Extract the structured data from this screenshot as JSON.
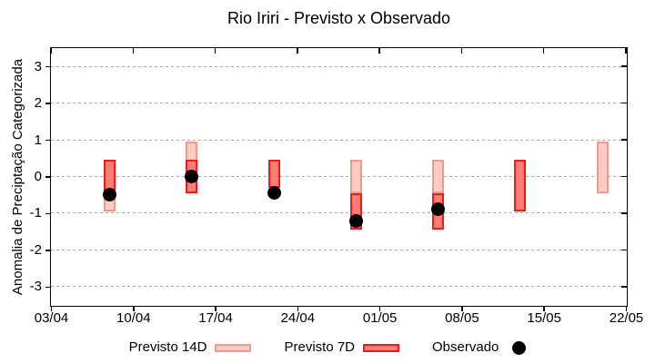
{
  "chart_data": {
    "type": "range-bar-scatter",
    "title": "Rio Iriri - Previsto x Observado",
    "ylabel": "Anomalia de Preciptação Categorizada",
    "ylim": [
      -3.5,
      3.5
    ],
    "yticks": [
      3,
      2,
      1,
      0,
      -1,
      -2,
      -3
    ],
    "grid": true,
    "legend_position": "bottom-center",
    "x_axis": {
      "total_days": 49,
      "ticks": [
        {
          "day": 0,
          "label": "03/04"
        },
        {
          "day": 7,
          "label": "10/04"
        },
        {
          "day": 14,
          "label": "17/04"
        },
        {
          "day": 21,
          "label": "24/04"
        },
        {
          "day": 28,
          "label": "01/05"
        },
        {
          "day": 35,
          "label": "08/05"
        },
        {
          "day": 42,
          "label": "15/05"
        },
        {
          "day": 49,
          "label": "22/05"
        }
      ]
    },
    "series": [
      {
        "name": "Previsto 14D",
        "type": "range",
        "fill": "#fbcbc4",
        "border": "#f09a8d",
        "points": [
          {
            "date": "08/04",
            "day": 5,
            "low": -0.95,
            "high": 0.45
          },
          {
            "date": "15/04",
            "day": 12,
            "low": -0.45,
            "high": 0.95
          },
          {
            "date": "29/04",
            "day": 26,
            "low": -0.45,
            "high": 0.45
          },
          {
            "date": "06/05",
            "day": 33,
            "low": -0.45,
            "high": 0.45
          },
          {
            "date": "20/05",
            "day": 47,
            "low": -0.45,
            "high": 0.95
          }
        ]
      },
      {
        "name": "Previsto 7D",
        "type": "range",
        "fill": "#fb7e76",
        "border": "#ea1c1c",
        "points": [
          {
            "date": "08/04",
            "day": 5,
            "low": -0.45,
            "high": 0.45
          },
          {
            "date": "15/04",
            "day": 12,
            "low": -0.45,
            "high": 0.45
          },
          {
            "date": "22/04",
            "day": 19,
            "low": -0.3,
            "high": 0.45
          },
          {
            "date": "29/04",
            "day": 26,
            "low": -1.45,
            "high": -0.45
          },
          {
            "date": "06/05",
            "day": 33,
            "low": -1.45,
            "high": -0.45
          },
          {
            "date": "13/05",
            "day": 40,
            "low": -0.95,
            "high": 0.45
          }
        ]
      },
      {
        "name": "Observado",
        "type": "scatter",
        "color": "#000000",
        "points": [
          {
            "date": "08/04",
            "day": 5,
            "value": -0.5
          },
          {
            "date": "15/04",
            "day": 12,
            "value": 0.0
          },
          {
            "date": "22/04",
            "day": 19,
            "value": -0.45
          },
          {
            "date": "29/04",
            "day": 26,
            "value": -1.2
          },
          {
            "date": "06/05",
            "day": 33,
            "value": -0.9
          }
        ]
      }
    ]
  }
}
